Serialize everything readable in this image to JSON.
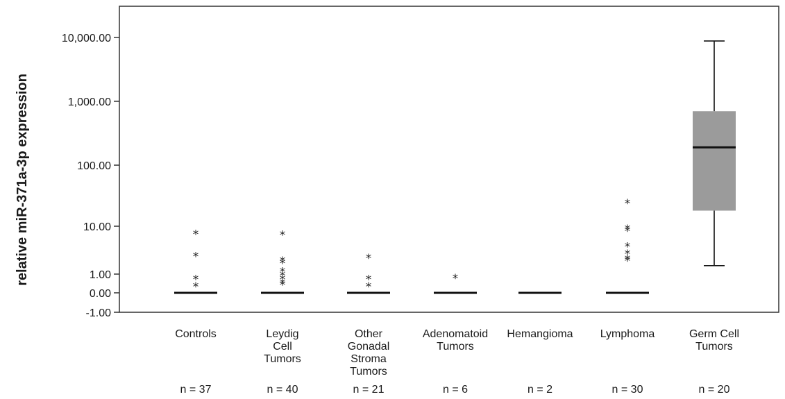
{
  "chart_data": {
    "type": "box",
    "ylabel": "relative miR-371a-3p expression",
    "y_ticks": [
      "-1.00",
      "0.00",
      "1.00",
      "10.00",
      "100.00",
      "1,000.00",
      "10,000.00"
    ],
    "y_scale": "compressed-log",
    "categories": [
      "Controls",
      "Leydig Cell Tumors",
      "Other Gonadal Stroma Tumors",
      "Adenomatoid Tumors",
      "Hemangioma",
      "Lymphoma",
      "Germ Cell Tumors"
    ],
    "category_lines": [
      [
        "Controls"
      ],
      [
        "Leydig",
        "Cell",
        "Tumors"
      ],
      [
        "Other",
        "Gonadal",
        "Stroma",
        "Tumors"
      ],
      [
        "Adenomatoid",
        "Tumors"
      ],
      [
        "Hemangioma"
      ],
      [
        "Lymphoma"
      ],
      [
        "Germ Cell",
        "Tumors"
      ]
    ],
    "n_labels": [
      "n = 37",
      "n = 40",
      "n = 21",
      "n = 6",
      "n = 2",
      "n = 30",
      "n = 20"
    ],
    "series": [
      {
        "median": 0,
        "outliers": [
          0.4,
          0.8,
          2.5,
          7.3
        ]
      },
      {
        "median": 0,
        "outliers": [
          0.5,
          0.6,
          0.8,
          1.0,
          1.2,
          1.8,
          2.0,
          7.0
        ]
      },
      {
        "median": 0,
        "outliers": [
          0.4,
          0.8,
          2.3
        ]
      },
      {
        "median": 0,
        "outliers": [
          0.85
        ]
      },
      {
        "median": 0,
        "outliers": []
      },
      {
        "median": 0,
        "outliers": [
          2.0,
          2.2,
          2.8,
          4.0,
          8.5,
          9.3,
          25
        ]
      },
      {
        "median": 190,
        "q1": 18,
        "q3": 700,
        "whisker_low": 1.5,
        "whisker_high": 8800,
        "outliers": []
      }
    ],
    "colors": {
      "box_fill": "#9b9b9b",
      "line": "#111111",
      "axis": "#333333"
    },
    "grid": false,
    "legend": "none"
  }
}
